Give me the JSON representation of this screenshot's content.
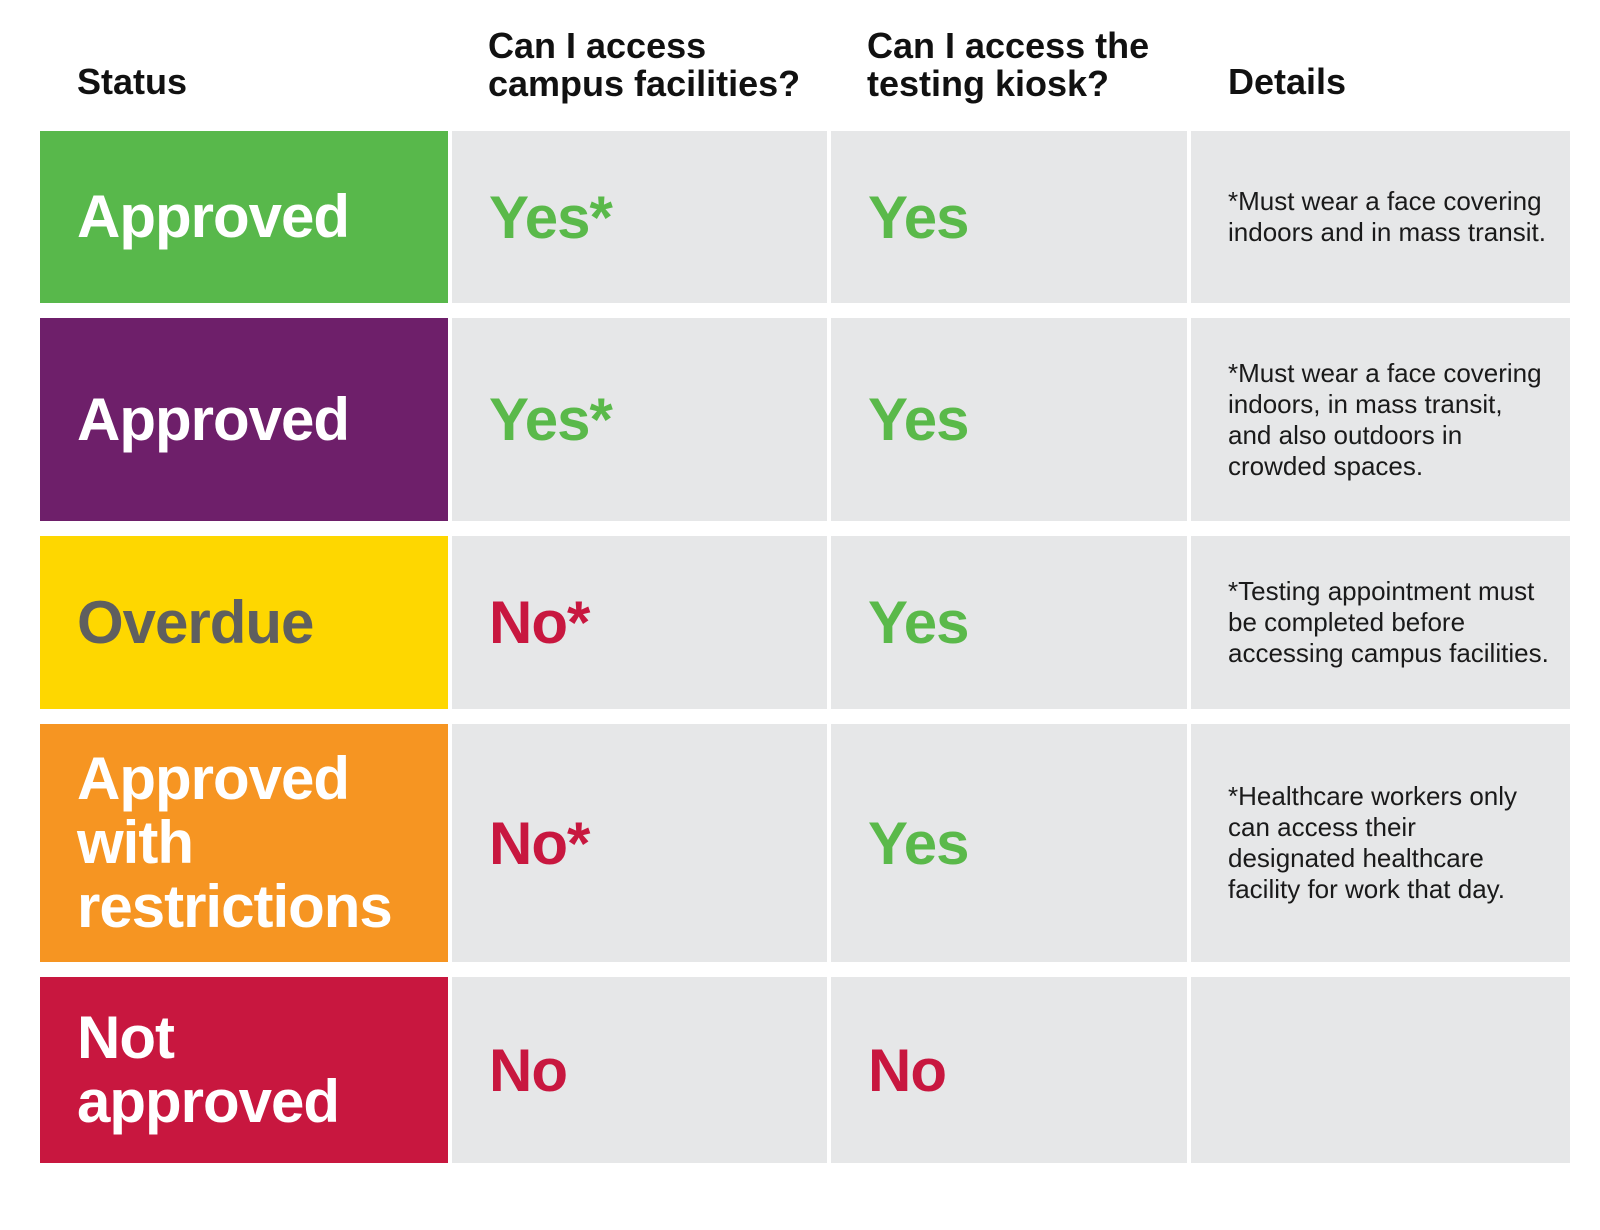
{
  "colors": {
    "yes": "#5ab94a",
    "no": "#c8173f",
    "cell_bg": "#e6e7e8"
  },
  "headers": {
    "status": "Status",
    "campus": "Can I access\ncampus facilities?",
    "kiosk": "Can I access the\ntesting kiosk?",
    "details": "Details"
  },
  "rows": [
    {
      "status": "Approved",
      "status_bg": "#58b84b",
      "status_color": "#ffffff",
      "campus": "Yes*",
      "campus_type": "yes",
      "kiosk": "Yes",
      "kiosk_type": "yes",
      "details": "*Must wear a face covering indoors and in mass transit."
    },
    {
      "status": "Approved",
      "status_bg": "#6e1f6a",
      "status_color": "#ffffff",
      "campus": "Yes*",
      "campus_type": "yes",
      "kiosk": "Yes",
      "kiosk_type": "yes",
      "details": "*Must wear a face covering indoors, in mass transit, and also outdoors in crowded spaces."
    },
    {
      "status": "Overdue",
      "status_bg": "#fed700",
      "status_color": "#5f5f5f",
      "campus": "No*",
      "campus_type": "no",
      "kiosk": "Yes",
      "kiosk_type": "yes",
      "details": "*Testing appointment must be completed before accessing campus facilities."
    },
    {
      "status": "Approved\nwith\nrestrictions",
      "status_bg": "#f69522",
      "status_color": "#ffffff",
      "campus": "No*",
      "campus_type": "no",
      "kiosk": "Yes",
      "kiosk_type": "yes",
      "details": "*Healthcare workers only can access their designated healthcare facility for work that day."
    },
    {
      "status": "Not\napproved",
      "status_bg": "#c8173f",
      "status_color": "#ffffff",
      "campus": "No",
      "campus_type": "no",
      "kiosk": "No",
      "kiosk_type": "no",
      "details": ""
    }
  ]
}
